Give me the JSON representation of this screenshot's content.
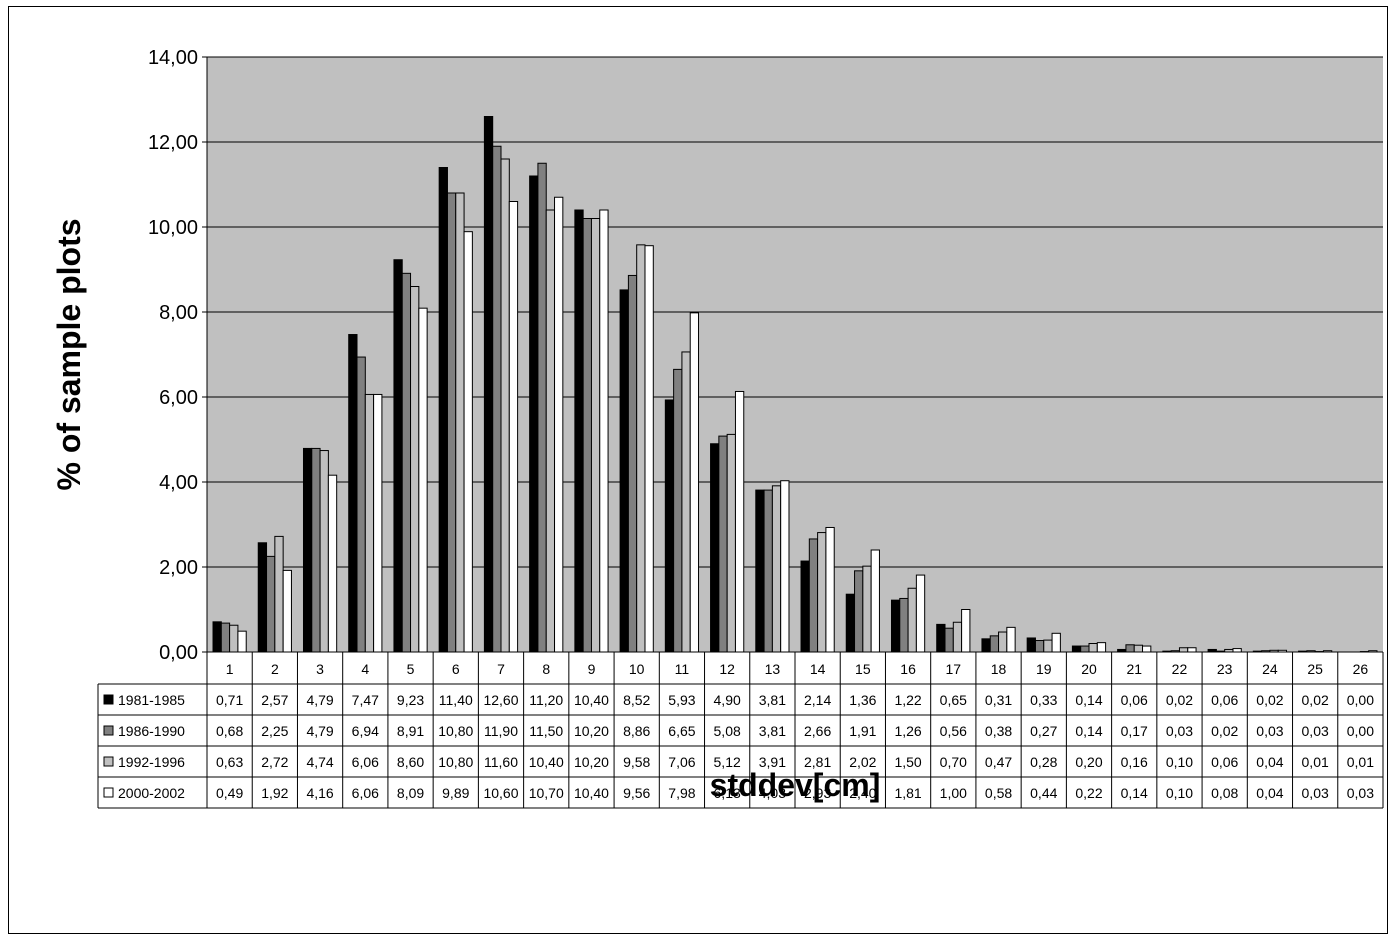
{
  "chart_data": {
    "type": "bar",
    "title": "",
    "xlabel": "stddev[cm]",
    "ylabel": "% of sample plots",
    "ylim": [
      0,
      14
    ],
    "yticks": [
      "0,00",
      "2,00",
      "4,00",
      "6,00",
      "8,00",
      "10,00",
      "12,00",
      "14,00"
    ],
    "grid": true,
    "legend": "data-table-left",
    "plot_background": "#c0c0c0",
    "categories": [
      "1",
      "2",
      "3",
      "4",
      "5",
      "6",
      "7",
      "8",
      "9",
      "10",
      "11",
      "12",
      "13",
      "14",
      "15",
      "16",
      "17",
      "18",
      "19",
      "20",
      "21",
      "22",
      "23",
      "24",
      "25",
      "26"
    ],
    "series": [
      {
        "name": "1981-1985",
        "color": "#000000",
        "values": [
          0.71,
          2.57,
          4.79,
          7.47,
          9.23,
          11.4,
          12.6,
          11.2,
          10.4,
          8.52,
          5.93,
          4.9,
          3.81,
          2.14,
          1.36,
          1.22,
          0.65,
          0.31,
          0.33,
          0.14,
          0.06,
          0.02,
          0.06,
          0.02,
          0.02,
          0.0
        ],
        "labels": [
          "0,71",
          "2,57",
          "4,79",
          "7,47",
          "9,23",
          "11,40",
          "12,60",
          "11,20",
          "10,40",
          "8,52",
          "5,93",
          "4,90",
          "3,81",
          "2,14",
          "1,36",
          "1,22",
          "0,65",
          "0,31",
          "0,33",
          "0,14",
          "0,06",
          "0,02",
          "0,06",
          "0,02",
          "0,02",
          "0,00"
        ]
      },
      {
        "name": "1986-1990",
        "color": "#808080",
        "values": [
          0.68,
          2.25,
          4.79,
          6.94,
          8.91,
          10.8,
          11.9,
          11.5,
          10.2,
          8.86,
          6.65,
          5.08,
          3.81,
          2.66,
          1.91,
          1.26,
          0.56,
          0.38,
          0.27,
          0.14,
          0.17,
          0.03,
          0.02,
          0.03,
          0.03,
          0.0
        ],
        "labels": [
          "0,68",
          "2,25",
          "4,79",
          "6,94",
          "8,91",
          "10,80",
          "11,90",
          "11,50",
          "10,20",
          "8,86",
          "6,65",
          "5,08",
          "3,81",
          "2,66",
          "1,91",
          "1,26",
          "0,56",
          "0,38",
          "0,27",
          "0,14",
          "0,17",
          "0,03",
          "0,02",
          "0,03",
          "0,03",
          "0,00"
        ]
      },
      {
        "name": "1992-1996",
        "color": "#c0c0c0",
        "values": [
          0.63,
          2.72,
          4.74,
          6.06,
          8.6,
          10.8,
          11.6,
          10.4,
          10.2,
          9.58,
          7.06,
          5.12,
          3.91,
          2.81,
          2.02,
          1.5,
          0.7,
          0.47,
          0.28,
          0.2,
          0.16,
          0.1,
          0.06,
          0.04,
          0.01,
          0.01
        ],
        "labels": [
          "0,63",
          "2,72",
          "4,74",
          "6,06",
          "8,60",
          "10,80",
          "11,60",
          "10,40",
          "10,20",
          "9,58",
          "7,06",
          "5,12",
          "3,91",
          "2,81",
          "2,02",
          "1,50",
          "0,70",
          "0,47",
          "0,28",
          "0,20",
          "0,16",
          "0,10",
          "0,06",
          "0,04",
          "0,01",
          "0,01"
        ]
      },
      {
        "name": "2000-2002",
        "color": "#ffffff",
        "values": [
          0.49,
          1.92,
          4.16,
          6.06,
          8.09,
          9.89,
          10.6,
          10.7,
          10.4,
          9.56,
          7.98,
          6.13,
          4.03,
          2.93,
          2.4,
          1.81,
          1.0,
          0.58,
          0.44,
          0.22,
          0.14,
          0.1,
          0.08,
          0.04,
          0.03,
          0.03
        ],
        "labels": [
          "0,49",
          "1,92",
          "4,16",
          "6,06",
          "8,09",
          "9,89",
          "10,60",
          "10,70",
          "10,40",
          "9,56",
          "7,98",
          "6,13",
          "4,03",
          "2,93",
          "2,40",
          "1,81",
          "1,00",
          "0,58",
          "0,44",
          "0,22",
          "0,14",
          "0,10",
          "0,08",
          "0,04",
          "0,03",
          "0,03"
        ]
      }
    ]
  }
}
